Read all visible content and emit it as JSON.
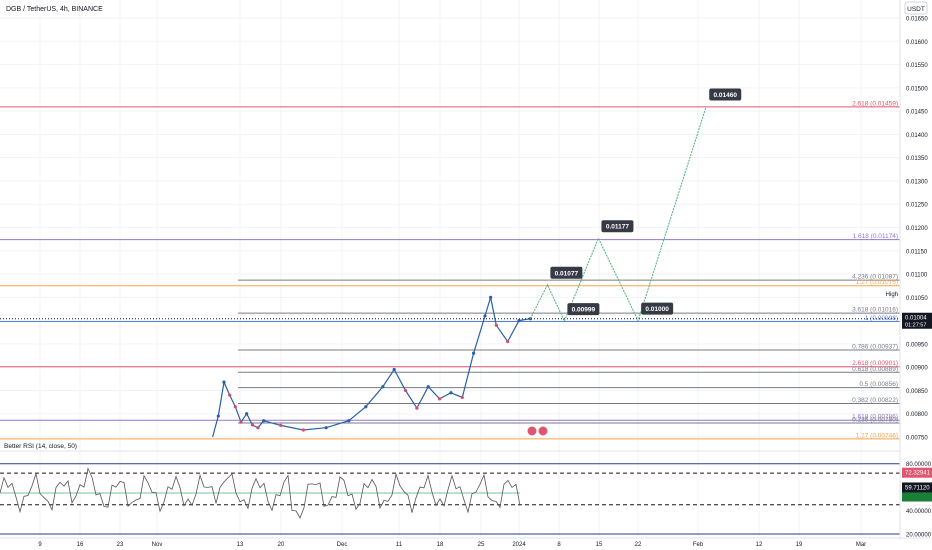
{
  "header": {
    "title": "DGB / TetherUS, 4h, BINANCE",
    "currency_button": "USDT"
  },
  "colors": {
    "background": "#ffffff",
    "grid": "#f0f3fa",
    "up": "#2a5fa8",
    "down": "#d64a6a",
    "projection": "#4caf73",
    "rsi_line": "#555555"
  },
  "chart_data": {
    "type": "line",
    "title": "DGB / TetherUS, 4h, BINANCE",
    "ylim": [
      0.0075,
      0.0165
    ],
    "y_scale": "linear",
    "y_ticks": [
      "0.01650",
      "0.01600",
      "0.01550",
      "0.01500",
      "0.01450",
      "0.01400",
      "0.01350",
      "0.01300",
      "0.01250",
      "0.01200",
      "0.01150",
      "0.01100",
      "0.01050",
      "0.01000",
      "0.00950",
      "0.00900",
      "0.00850",
      "0.00800",
      "0.00750"
    ],
    "x_tick_labels": [
      "9",
      "16",
      "23",
      "Nov",
      "13",
      "20",
      "Dec",
      "11",
      "18",
      "25",
      "2024",
      "8",
      "15",
      "22",
      "Feb",
      "12",
      "19",
      "Mar"
    ],
    "price_series": {
      "name": "DGB / TetherUS",
      "points": [
        [
          "Nov 8",
          0.0075
        ],
        [
          "Nov 9",
          0.00795
        ],
        [
          "Nov 10",
          0.00868
        ],
        [
          "Nov 11",
          0.0084
        ],
        [
          "Nov 12",
          0.00815
        ],
        [
          "Nov 13",
          0.00782
        ],
        [
          "Nov 14",
          0.008
        ],
        [
          "Nov 15",
          0.00776
        ],
        [
          "Nov 16",
          0.0077
        ],
        [
          "Nov 17",
          0.00785
        ],
        [
          "Nov 20",
          0.00775
        ],
        [
          "Nov 24",
          0.00765
        ],
        [
          "Nov 28",
          0.0077
        ],
        [
          "Dec 2",
          0.00785
        ],
        [
          "Dec 5",
          0.00815
        ],
        [
          "Dec 8",
          0.00858
        ],
        [
          "Dec 10",
          0.00895
        ],
        [
          "Dec 12",
          0.0085
        ],
        [
          "Dec 14",
          0.00812
        ],
        [
          "Dec 16",
          0.00858
        ],
        [
          "Dec 18",
          0.00832
        ],
        [
          "Dec 20",
          0.00845
        ],
        [
          "Dec 22",
          0.00835
        ],
        [
          "Dec 24",
          0.0093
        ],
        [
          "Dec 26",
          0.0101
        ],
        [
          "Dec 27",
          0.0105
        ],
        [
          "Dec 28",
          0.0099
        ],
        [
          "Dec 30",
          0.00955
        ],
        [
          "Jan 1",
          0.01
        ],
        [
          "Jan 3",
          0.01004
        ]
      ]
    },
    "projection_path": {
      "labels": [
        "0.01077",
        "0.00999",
        "0.01177",
        "0.01000",
        "0.01460"
      ],
      "points": [
        [
          "Jan 3",
          0.01004
        ],
        [
          "Jan 6",
          0.01077
        ],
        [
          "Jan 9",
          0.00999
        ],
        [
          "Jan 15",
          0.01177
        ],
        [
          "Jan 22",
          0.01
        ],
        [
          "Feb 3",
          0.0146
        ]
      ]
    },
    "fib_levels": [
      {
        "label": "2.618 (0.01459)",
        "value": 0.01459,
        "color": "#e0566f"
      },
      {
        "label": "1.618 (0.01174)",
        "value": 0.01174,
        "color": "#9575cd"
      },
      {
        "label": "4.236 (0.01087)",
        "value": 0.01087,
        "color": "#787b86"
      },
      {
        "label": "1.27 (0.01075)",
        "value": 0.01075,
        "color": "#f7a54a"
      },
      {
        "label": "3.618 (0.01016)",
        "value": 0.01016,
        "color": "#787b86"
      },
      {
        "label": "1 (0.00998)",
        "value": 0.00998,
        "color": "#5b7fd6"
      },
      {
        "label": "0.786 (0.00937)",
        "value": 0.00937,
        "color": "#787b86"
      },
      {
        "label": "2.618 (0.00901)",
        "value": 0.00901,
        "color": "#e0566f"
      },
      {
        "label": "0.618 (0.00889)",
        "value": 0.00889,
        "color": "#787b86"
      },
      {
        "label": "0.5 (0.00856)",
        "value": 0.00856,
        "color": "#787b86"
      },
      {
        "label": "0.382 (0.00822)",
        "value": 0.00822,
        "color": "#787b86"
      },
      {
        "label": "1.618 (0.00786)",
        "value": 0.00786,
        "color": "#9575cd"
      },
      {
        "label": "0.236 (0.00780)",
        "value": 0.0078,
        "color": "#787b86"
      },
      {
        "label": "1.27 (0.00746)",
        "value": 0.00746,
        "color": "#f7a54a"
      }
    ],
    "high_label": "High",
    "current_price": "0.01004",
    "countdown": "01:27:57",
    "rsi": {
      "title": "Better RSI (14, close, 50)",
      "ylim": [
        20,
        90
      ],
      "y_ticks": [
        "80.00000",
        "40.00000",
        "20.00000"
      ],
      "badge_upper": "72.32941",
      "badge_current": "59.71120"
    }
  }
}
